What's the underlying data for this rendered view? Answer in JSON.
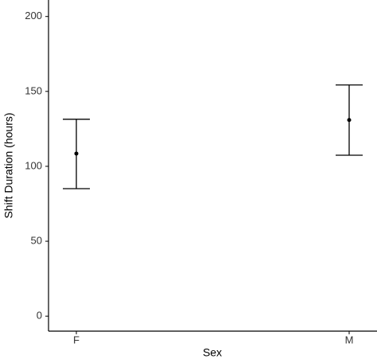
{
  "chart_data": {
    "type": "errorbar",
    "x_label": "Sex",
    "y_label": "Shift Duration (hours)",
    "categories": [
      "F",
      "M"
    ],
    "values": [
      108.5,
      130.9
    ],
    "lower": [
      85.1,
      107.4
    ],
    "upper": [
      131.4,
      154.3
    ],
    "color": "#000000",
    "ylim": [
      -10,
      211
    ],
    "yticks": [
      0,
      50,
      100,
      150,
      200
    ],
    "grid": false
  }
}
